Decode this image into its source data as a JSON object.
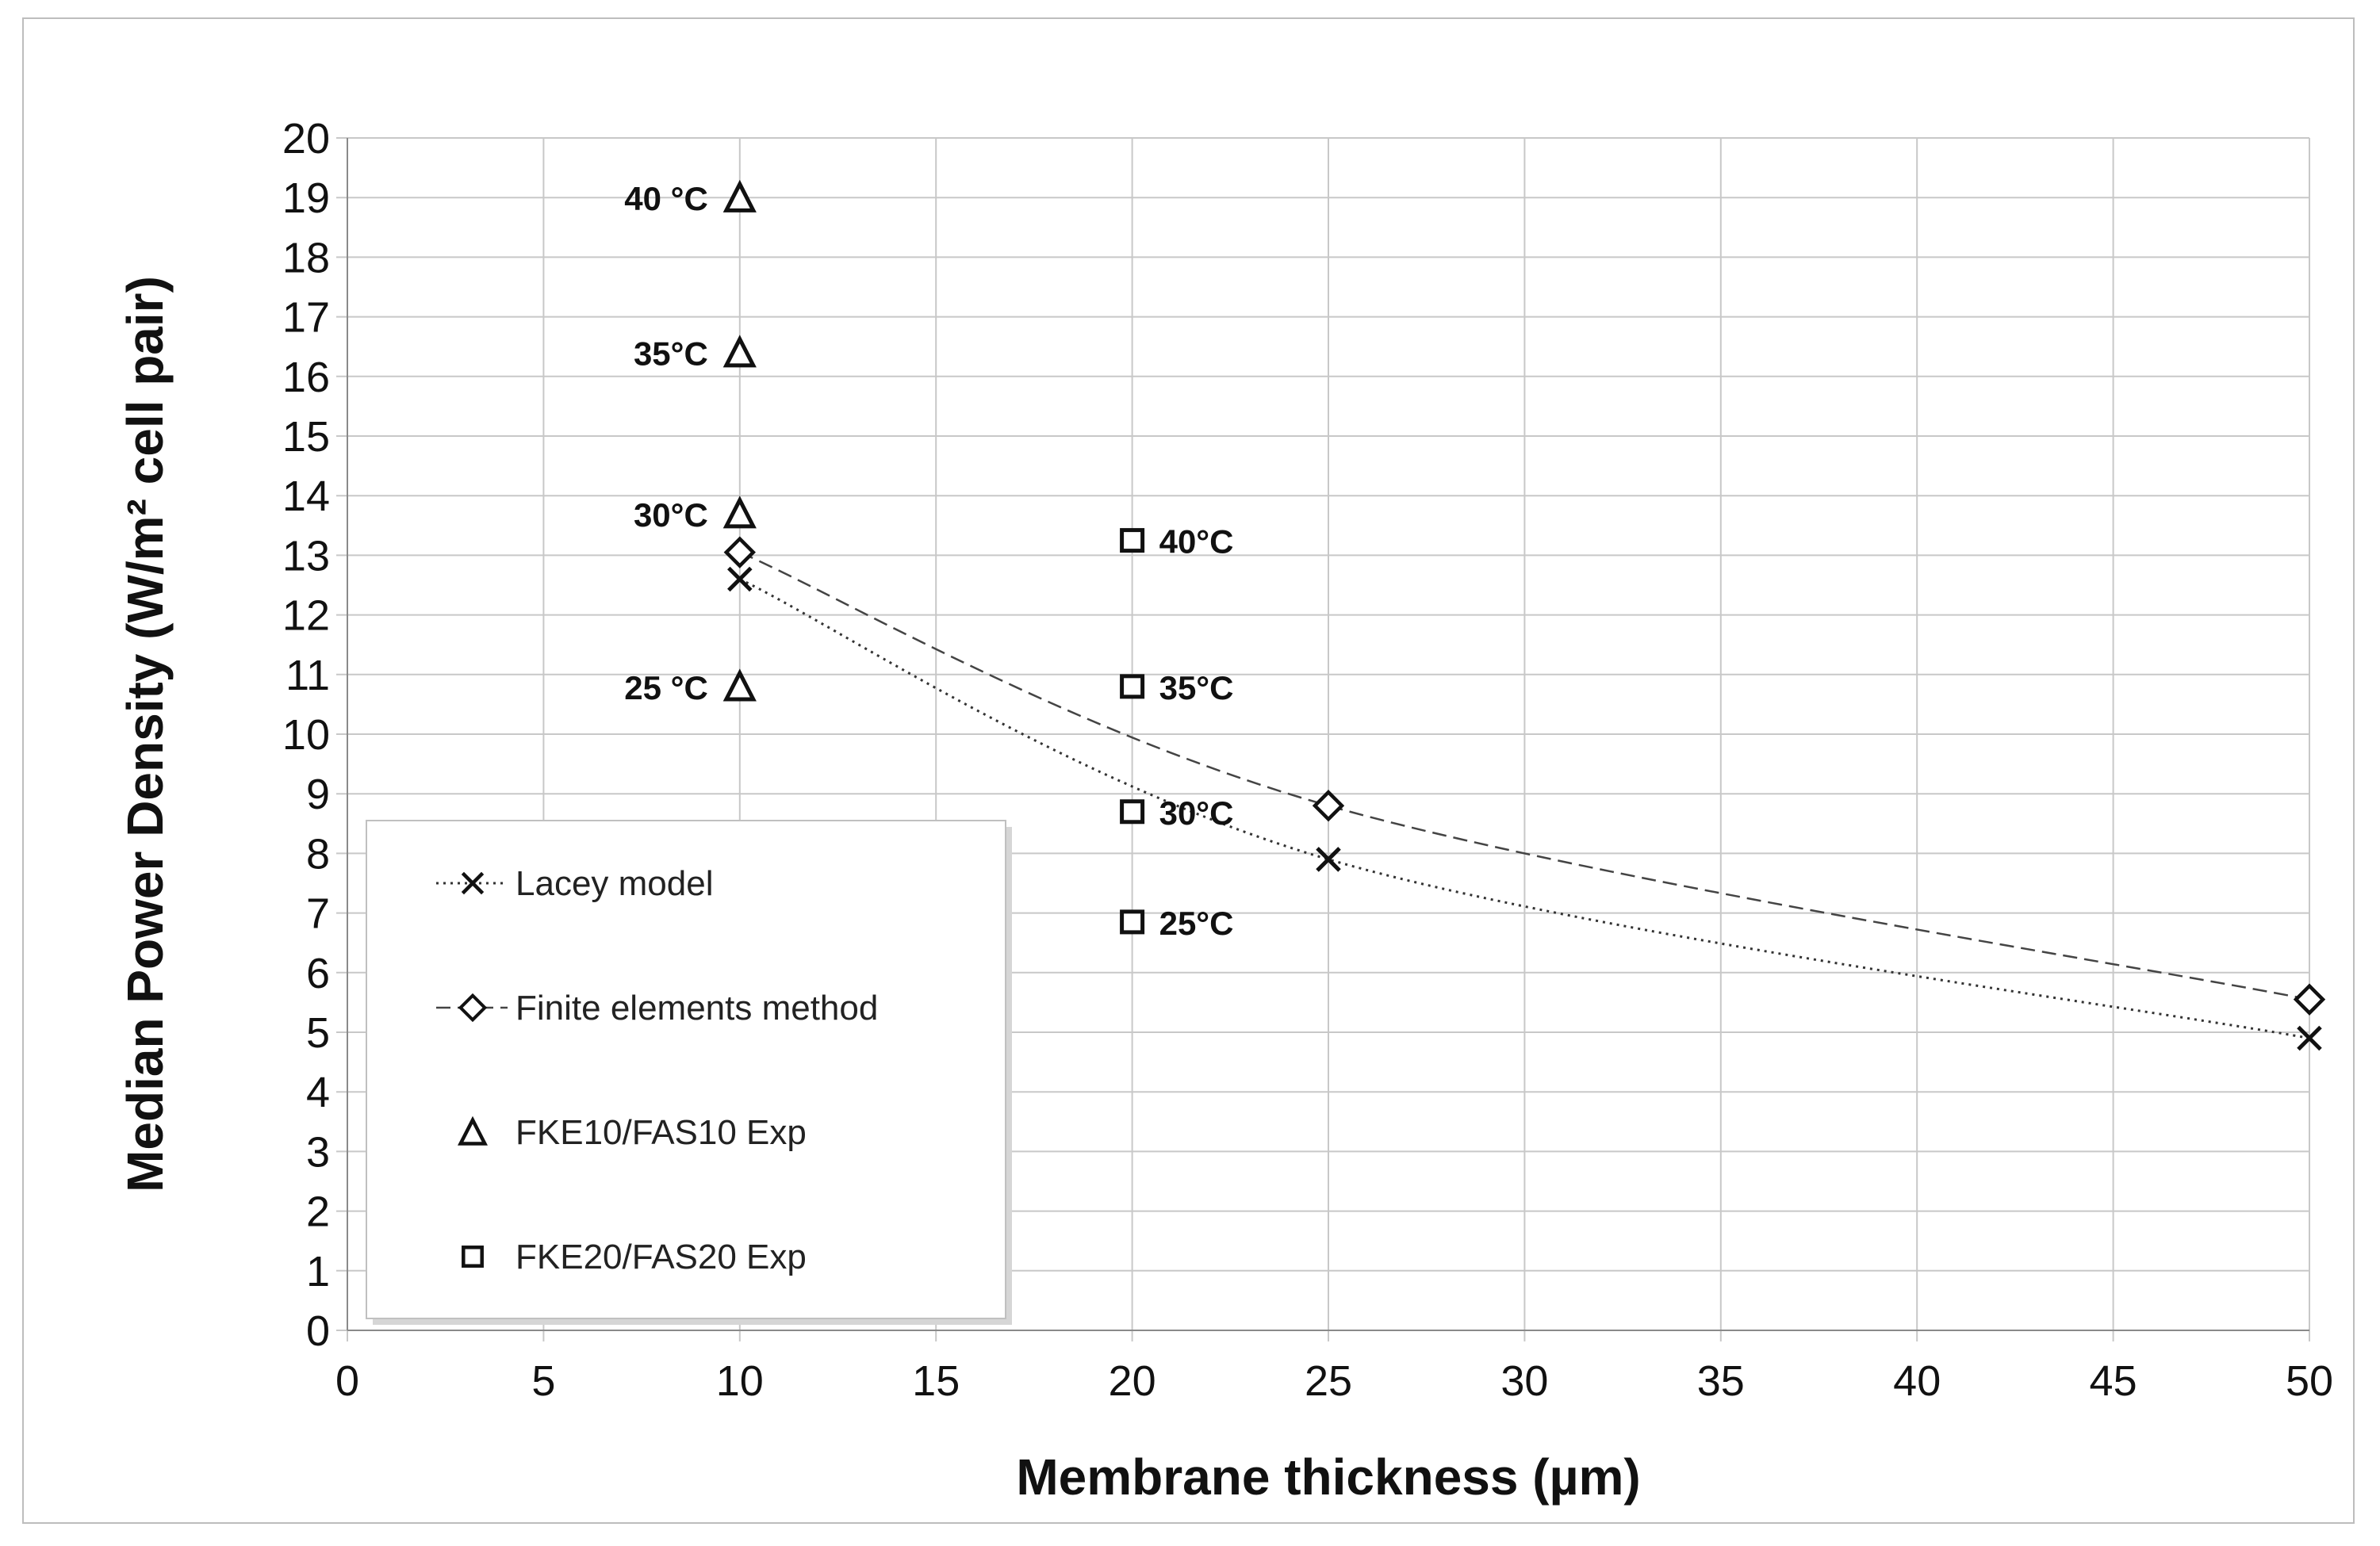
{
  "chart_data": {
    "type": "scatter",
    "title": "",
    "xlabel": "Membrane thickness (µm)",
    "ylabel": "Median Power Density  (W/m² cell pair)",
    "xlim": [
      0,
      50
    ],
    "ylim": [
      0,
      20
    ],
    "xticks": [
      0,
      5,
      10,
      15,
      20,
      25,
      30,
      35,
      40,
      45,
      50
    ],
    "yticks": [
      0,
      1,
      2,
      3,
      4,
      5,
      6,
      7,
      8,
      9,
      10,
      11,
      12,
      13,
      14,
      15,
      16,
      17,
      18,
      19,
      20
    ],
    "grid": true,
    "legend_position": "bottom-left",
    "series": [
      {
        "name": "Lacey model",
        "marker": "x",
        "line": "dotted",
        "x": [
          10,
          25,
          50
        ],
        "y": [
          12.6,
          7.9,
          4.9
        ]
      },
      {
        "name": "Finite elements  method",
        "marker": "diamond",
        "line": "dashed",
        "x": [
          10,
          25,
          50
        ],
        "y": [
          13.05,
          8.8,
          5.55
        ]
      },
      {
        "name": "FKE10/FAS10 Exp",
        "marker": "triangle",
        "line": "none",
        "x": [
          10,
          10,
          10,
          10
        ],
        "y": [
          10.8,
          13.7,
          16.4,
          19.0
        ],
        "labels": [
          "25 °C",
          "30°C",
          "35°C",
          "40 °C"
        ]
      },
      {
        "name": "FKE20/FAS20 Exp",
        "marker": "square",
        "line": "none",
        "x": [
          20,
          20,
          20,
          20
        ],
        "y": [
          6.85,
          8.7,
          10.8,
          13.25
        ],
        "labels": [
          "25°C",
          "30°C",
          "35°C",
          "40°C"
        ]
      }
    ]
  }
}
